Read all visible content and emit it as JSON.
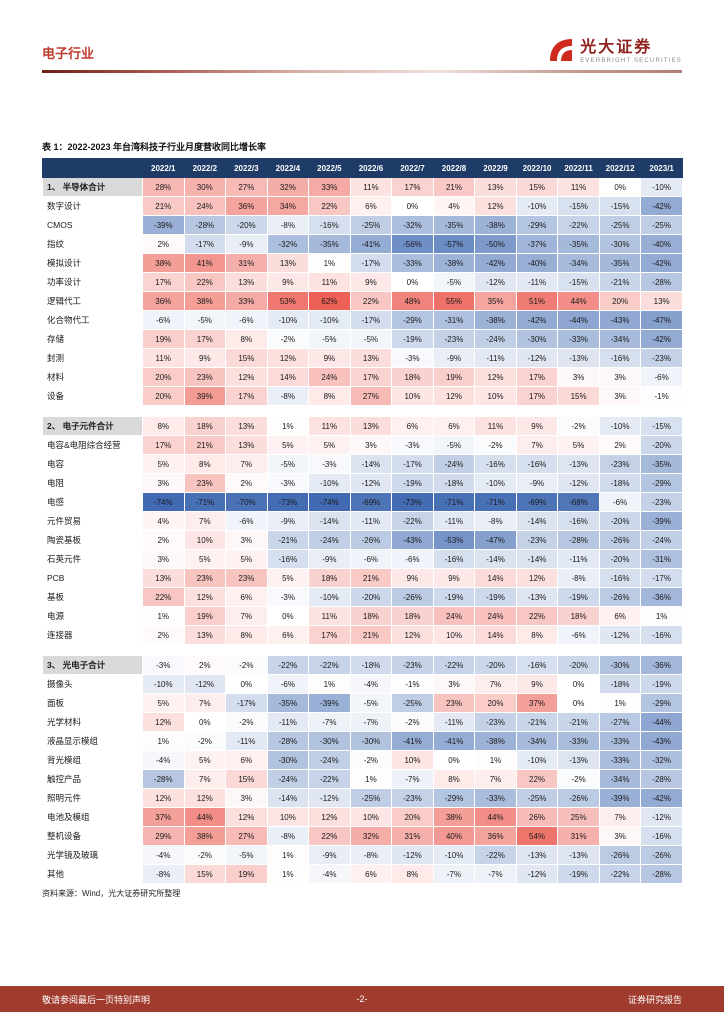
{
  "header": {
    "industry": "电子行业",
    "brand_name": "光大证券",
    "brand_subtitle": "EVERBRIGHT SECURITIES"
  },
  "colors": {
    "accent_red": "#BF3A2A",
    "header_bg": "#1F3C68",
    "section_bg": "#D9D9D9",
    "footer_bg": "#A03B2E",
    "positive_max": "#EC6056",
    "negative_max": "#3E68B1"
  },
  "chart_data": {
    "type": "table",
    "title": "表 1：2022-2023 年台湾科技子行业月度营收同比增长率",
    "unit": "%",
    "scale": {
      "positive_cap": 62,
      "negative_cap": 75
    },
    "columns": [
      "2022/1",
      "2022/2",
      "2022/3",
      "2022/4",
      "2022/5",
      "2022/6",
      "2022/7",
      "2022/8",
      "2022/9",
      "2022/10",
      "2022/11",
      "2022/12",
      "2023/1"
    ],
    "groups": [
      {
        "label": "1、 半导体合计",
        "values": [
          28,
          30,
          27,
          32,
          33,
          11,
          17,
          21,
          13,
          15,
          11,
          0,
          -10
        ],
        "rows": [
          {
            "label": "数字设计",
            "values": [
              21,
              24,
              36,
              34,
              22,
              6,
              0,
              4,
              12,
              -10,
              -15,
              -15,
              -42
            ]
          },
          {
            "label": "CMOS",
            "values": [
              -39,
              -28,
              -20,
              -8,
              -16,
              -25,
              -32,
              -35,
              -38,
              -29,
              -22,
              -25,
              -25
            ]
          },
          {
            "label": "指纹",
            "values": [
              2,
              -17,
              -9,
              -32,
              -35,
              -41,
              -56,
              -57,
              -50,
              -37,
              -35,
              -30,
              -40
            ]
          },
          {
            "label": "模拟设计",
            "values": [
              38,
              41,
              31,
              13,
              1,
              -17,
              -33,
              -38,
              -42,
              -40,
              -34,
              -35,
              -42
            ]
          },
          {
            "label": "功率设计",
            "values": [
              17,
              22,
              13,
              9,
              11,
              9,
              0,
              -5,
              -12,
              -11,
              -15,
              -21,
              -28
            ]
          },
          {
            "label": "逻辑代工",
            "values": [
              36,
              38,
              33,
              53,
              62,
              22,
              48,
              55,
              35,
              51,
              44,
              20,
              13
            ]
          },
          {
            "label": "化合物代工",
            "values": [
              -6,
              -5,
              -6,
              -10,
              -10,
              -17,
              -29,
              -31,
              -38,
              -42,
              -44,
              -43,
              -47
            ]
          },
          {
            "label": "存储",
            "values": [
              19,
              17,
              8,
              -2,
              -5,
              -5,
              -19,
              -23,
              -24,
              -30,
              -33,
              -34,
              -42
            ]
          },
          {
            "label": "封测",
            "values": [
              11,
              9,
              15,
              12,
              9,
              13,
              -3,
              -9,
              -11,
              -12,
              -13,
              -16,
              -23
            ]
          },
          {
            "label": "材料",
            "values": [
              20,
              23,
              12,
              14,
              24,
              17,
              18,
              19,
              12,
              17,
              3,
              3,
              -6
            ]
          },
          {
            "label": "设备",
            "values": [
              20,
              39,
              17,
              -8,
              8,
              27,
              10,
              12,
              10,
              17,
              15,
              3,
              -1
            ]
          }
        ]
      },
      {
        "label": "2、 电子元件合计",
        "values": [
          8,
          18,
          13,
          1,
          11,
          13,
          6,
          6,
          11,
          9,
          -2,
          -10,
          -15
        ],
        "rows": [
          {
            "label": "电容&电阻综合经营",
            "values": [
              17,
              21,
              13,
              5,
              5,
              3,
              -3,
              -5,
              -2,
              7,
              5,
              2,
              -20
            ]
          },
          {
            "label": "电容",
            "values": [
              5,
              8,
              7,
              -5,
              -3,
              -14,
              -17,
              -24,
              -16,
              -16,
              -13,
              -23,
              -35
            ]
          },
          {
            "label": "电阻",
            "values": [
              3,
              23,
              2,
              -3,
              -10,
              -12,
              -19,
              -18,
              -10,
              -9,
              -12,
              -18,
              -29
            ]
          },
          {
            "label": "电感",
            "values": [
              -74,
              -71,
              -70,
              -73,
              -74,
              -69,
              -73,
              -71,
              -71,
              -69,
              -68,
              -6,
              -23
            ]
          },
          {
            "label": "元件贸易",
            "values": [
              4,
              7,
              -6,
              -9,
              -14,
              -11,
              -22,
              -11,
              -8,
              -14,
              -16,
              -20,
              -39
            ]
          },
          {
            "label": "陶瓷基板",
            "values": [
              2,
              10,
              3,
              -21,
              -24,
              -26,
              -43,
              -53,
              -47,
              -23,
              -28,
              -26,
              -24
            ]
          },
          {
            "label": "石英元件",
            "values": [
              3,
              5,
              5,
              -16,
              -9,
              -6,
              -6,
              -16,
              -14,
              -14,
              -11,
              -20,
              -31
            ]
          },
          {
            "label": "PCB",
            "values": [
              13,
              23,
              23,
              5,
              18,
              21,
              9,
              9,
              14,
              12,
              -8,
              -16,
              -17
            ]
          },
          {
            "label": "基板",
            "values": [
              22,
              12,
              6,
              -3,
              -10,
              -20,
              -26,
              -19,
              -19,
              -13,
              -19,
              -26,
              -36
            ]
          },
          {
            "label": "电源",
            "values": [
              1,
              19,
              7,
              0,
              11,
              18,
              18,
              24,
              24,
              22,
              18,
              6,
              1
            ]
          },
          {
            "label": "连接器",
            "values": [
              2,
              13,
              8,
              6,
              17,
              21,
              12,
              10,
              14,
              8,
              -6,
              -12,
              -16
            ]
          }
        ]
      },
      {
        "label": "3、 光电子合计",
        "values": [
          -3,
          2,
          -2,
          -22,
          -22,
          -18,
          -23,
          -22,
          -20,
          -16,
          -20,
          -30,
          -36
        ],
        "rows": [
          {
            "label": "摄像头",
            "values": [
              -10,
              -12,
              0,
              -6,
              1,
              -4,
              -1,
              3,
              7,
              9,
              0,
              -18,
              -19
            ]
          },
          {
            "label": "面板",
            "values": [
              5,
              7,
              -17,
              -35,
              -39,
              -5,
              -25,
              23,
              20,
              37,
              0,
              1,
              -29
            ]
          },
          {
            "label": "光学材料",
            "values": [
              12,
              0,
              -2,
              -11,
              -7,
              -7,
              -2,
              -11,
              -23,
              -21,
              -21,
              -27,
              -44
            ]
          },
          {
            "label": "液晶显示模组",
            "values": [
              1,
              -2,
              -11,
              -28,
              -30,
              -30,
              -41,
              -41,
              -38,
              -34,
              -33,
              -33,
              -43
            ]
          },
          {
            "label": "背光模组",
            "values": [
              -4,
              5,
              6,
              -30,
              -24,
              -2,
              10,
              0,
              1,
              -10,
              -13,
              -33,
              -32
            ]
          },
          {
            "label": "触控产品",
            "values": [
              -28,
              7,
              15,
              -24,
              -22,
              1,
              -7,
              8,
              7,
              22,
              -2,
              -34,
              -28
            ]
          },
          {
            "label": "照明元件",
            "values": [
              12,
              12,
              3,
              -14,
              -12,
              -25,
              -23,
              -29,
              -33,
              -25,
              -26,
              -39,
              -42
            ]
          },
          {
            "label": "电池及模组",
            "values": [
              37,
              44,
              12,
              10,
              12,
              10,
              20,
              38,
              44,
              26,
              25,
              7,
              -12
            ]
          },
          {
            "label": "整机设备",
            "values": [
              29,
              38,
              27,
              -8,
              22,
              32,
              31,
              40,
              36,
              54,
              31,
              3,
              -16
            ]
          },
          {
            "label": "光学镜及玻璃",
            "values": [
              -4,
              -2,
              -5,
              1,
              -9,
              -8,
              -12,
              -10,
              -22,
              -13,
              -13,
              -26,
              -26
            ]
          },
          {
            "label": "其他",
            "values": [
              -8,
              15,
              19,
              1,
              -4,
              6,
              8,
              -7,
              -7,
              -12,
              -19,
              -22,
              -28
            ]
          }
        ]
      }
    ],
    "source": "资料来源：Wind，光大证券研究所整理"
  },
  "footer": {
    "left": "敬请参阅最后一页特别声明",
    "center": "-2-",
    "right": "证券研究报告"
  }
}
